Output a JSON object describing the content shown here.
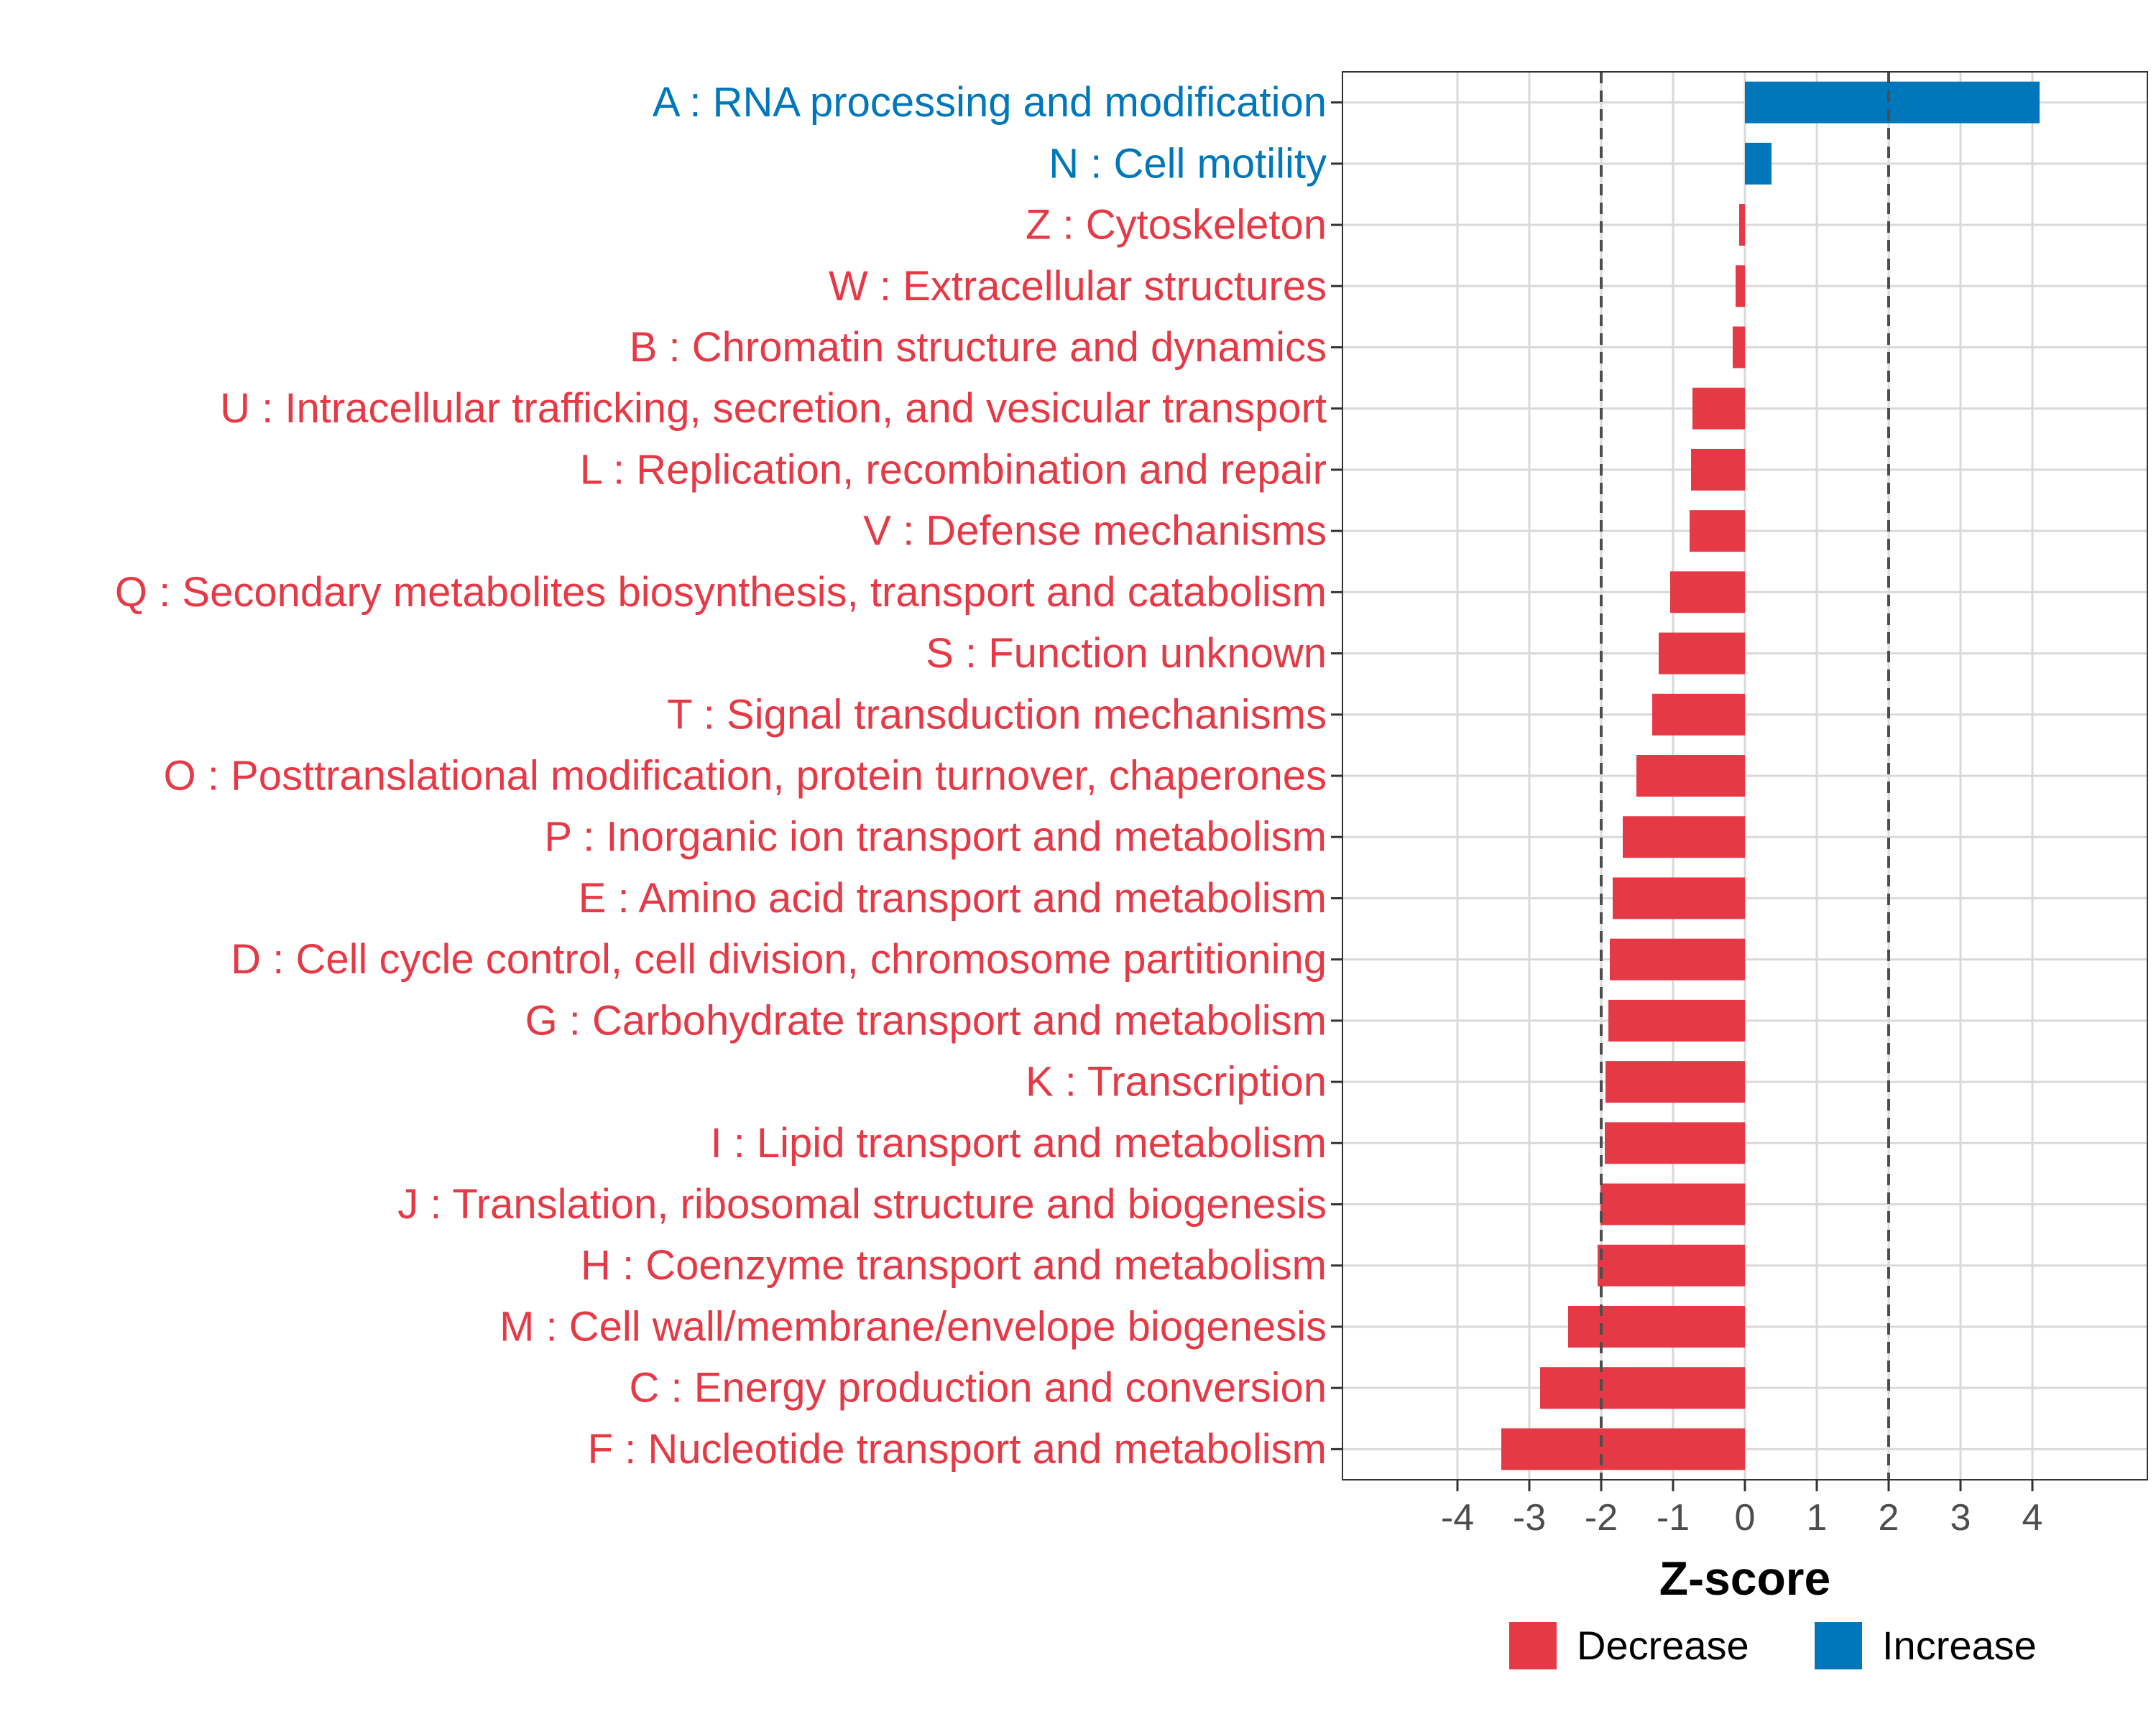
{
  "colors": {
    "decrease": "#e63946",
    "increase": "#0077bb",
    "grid": "#d9d9d9",
    "dashed": "#4d4d4d",
    "tick_text": "#4d4d4d"
  },
  "chart_data": {
    "type": "bar",
    "orientation": "horizontal",
    "title": "",
    "xlabel": "Z-score",
    "ylabel": "",
    "xlim": [
      -5.6,
      5.6
    ],
    "xticks": [
      -4,
      -3,
      -2,
      -1,
      0,
      1,
      2,
      3,
      4
    ],
    "xtick_labels": [
      "-4",
      "-3",
      "-2",
      "-1",
      "0",
      "1",
      "2",
      "3",
      "4"
    ],
    "reference_lines": [
      -2,
      2
    ],
    "grid": true,
    "legend": {
      "placement": "bottom",
      "entries": [
        {
          "name": "Decrease",
          "color": "#e63946"
        },
        {
          "name": "Increase",
          "color": "#0077bb"
        }
      ]
    },
    "categories": [
      "A : RNA processing and modification",
      "N : Cell motility",
      "Z : Cytoskeleton",
      "W : Extracellular structures",
      "B : Chromatin structure and dynamics",
      "U : Intracellular trafficking, secretion, and vesicular transport",
      "L : Replication, recombination and repair",
      "V : Defense mechanisms",
      "Q : Secondary metabolites biosynthesis, transport and catabolism",
      "S : Function unknown",
      "T : Signal transduction mechanisms",
      "O : Posttranslational modification, protein turnover, chaperones",
      "P : Inorganic ion transport and metabolism",
      "E : Amino acid transport and metabolism",
      "D : Cell cycle control, cell division, chromosome partitioning",
      "G : Carbohydrate transport and metabolism",
      "K : Transcription",
      "I : Lipid transport and metabolism",
      "J : Translation, ribosomal structure and biogenesis",
      "H : Coenzyme transport and metabolism",
      "M : Cell wall/membrane/envelope biogenesis",
      "C : Energy production and conversion",
      "F : Nucleotide transport and metabolism"
    ],
    "values": [
      4.1,
      0.37,
      -0.08,
      -0.13,
      -0.17,
      -0.73,
      -0.75,
      -0.77,
      -1.04,
      -1.2,
      -1.29,
      -1.51,
      -1.7,
      -1.84,
      -1.88,
      -1.9,
      -1.94,
      -1.95,
      -2.01,
      -2.05,
      -2.46,
      -2.85,
      -3.39
    ],
    "groups": [
      "Increase",
      "Increase",
      "Decrease",
      "Decrease",
      "Decrease",
      "Decrease",
      "Decrease",
      "Decrease",
      "Decrease",
      "Decrease",
      "Decrease",
      "Decrease",
      "Decrease",
      "Decrease",
      "Decrease",
      "Decrease",
      "Decrease",
      "Decrease",
      "Decrease",
      "Decrease",
      "Decrease",
      "Decrease",
      "Decrease"
    ]
  }
}
